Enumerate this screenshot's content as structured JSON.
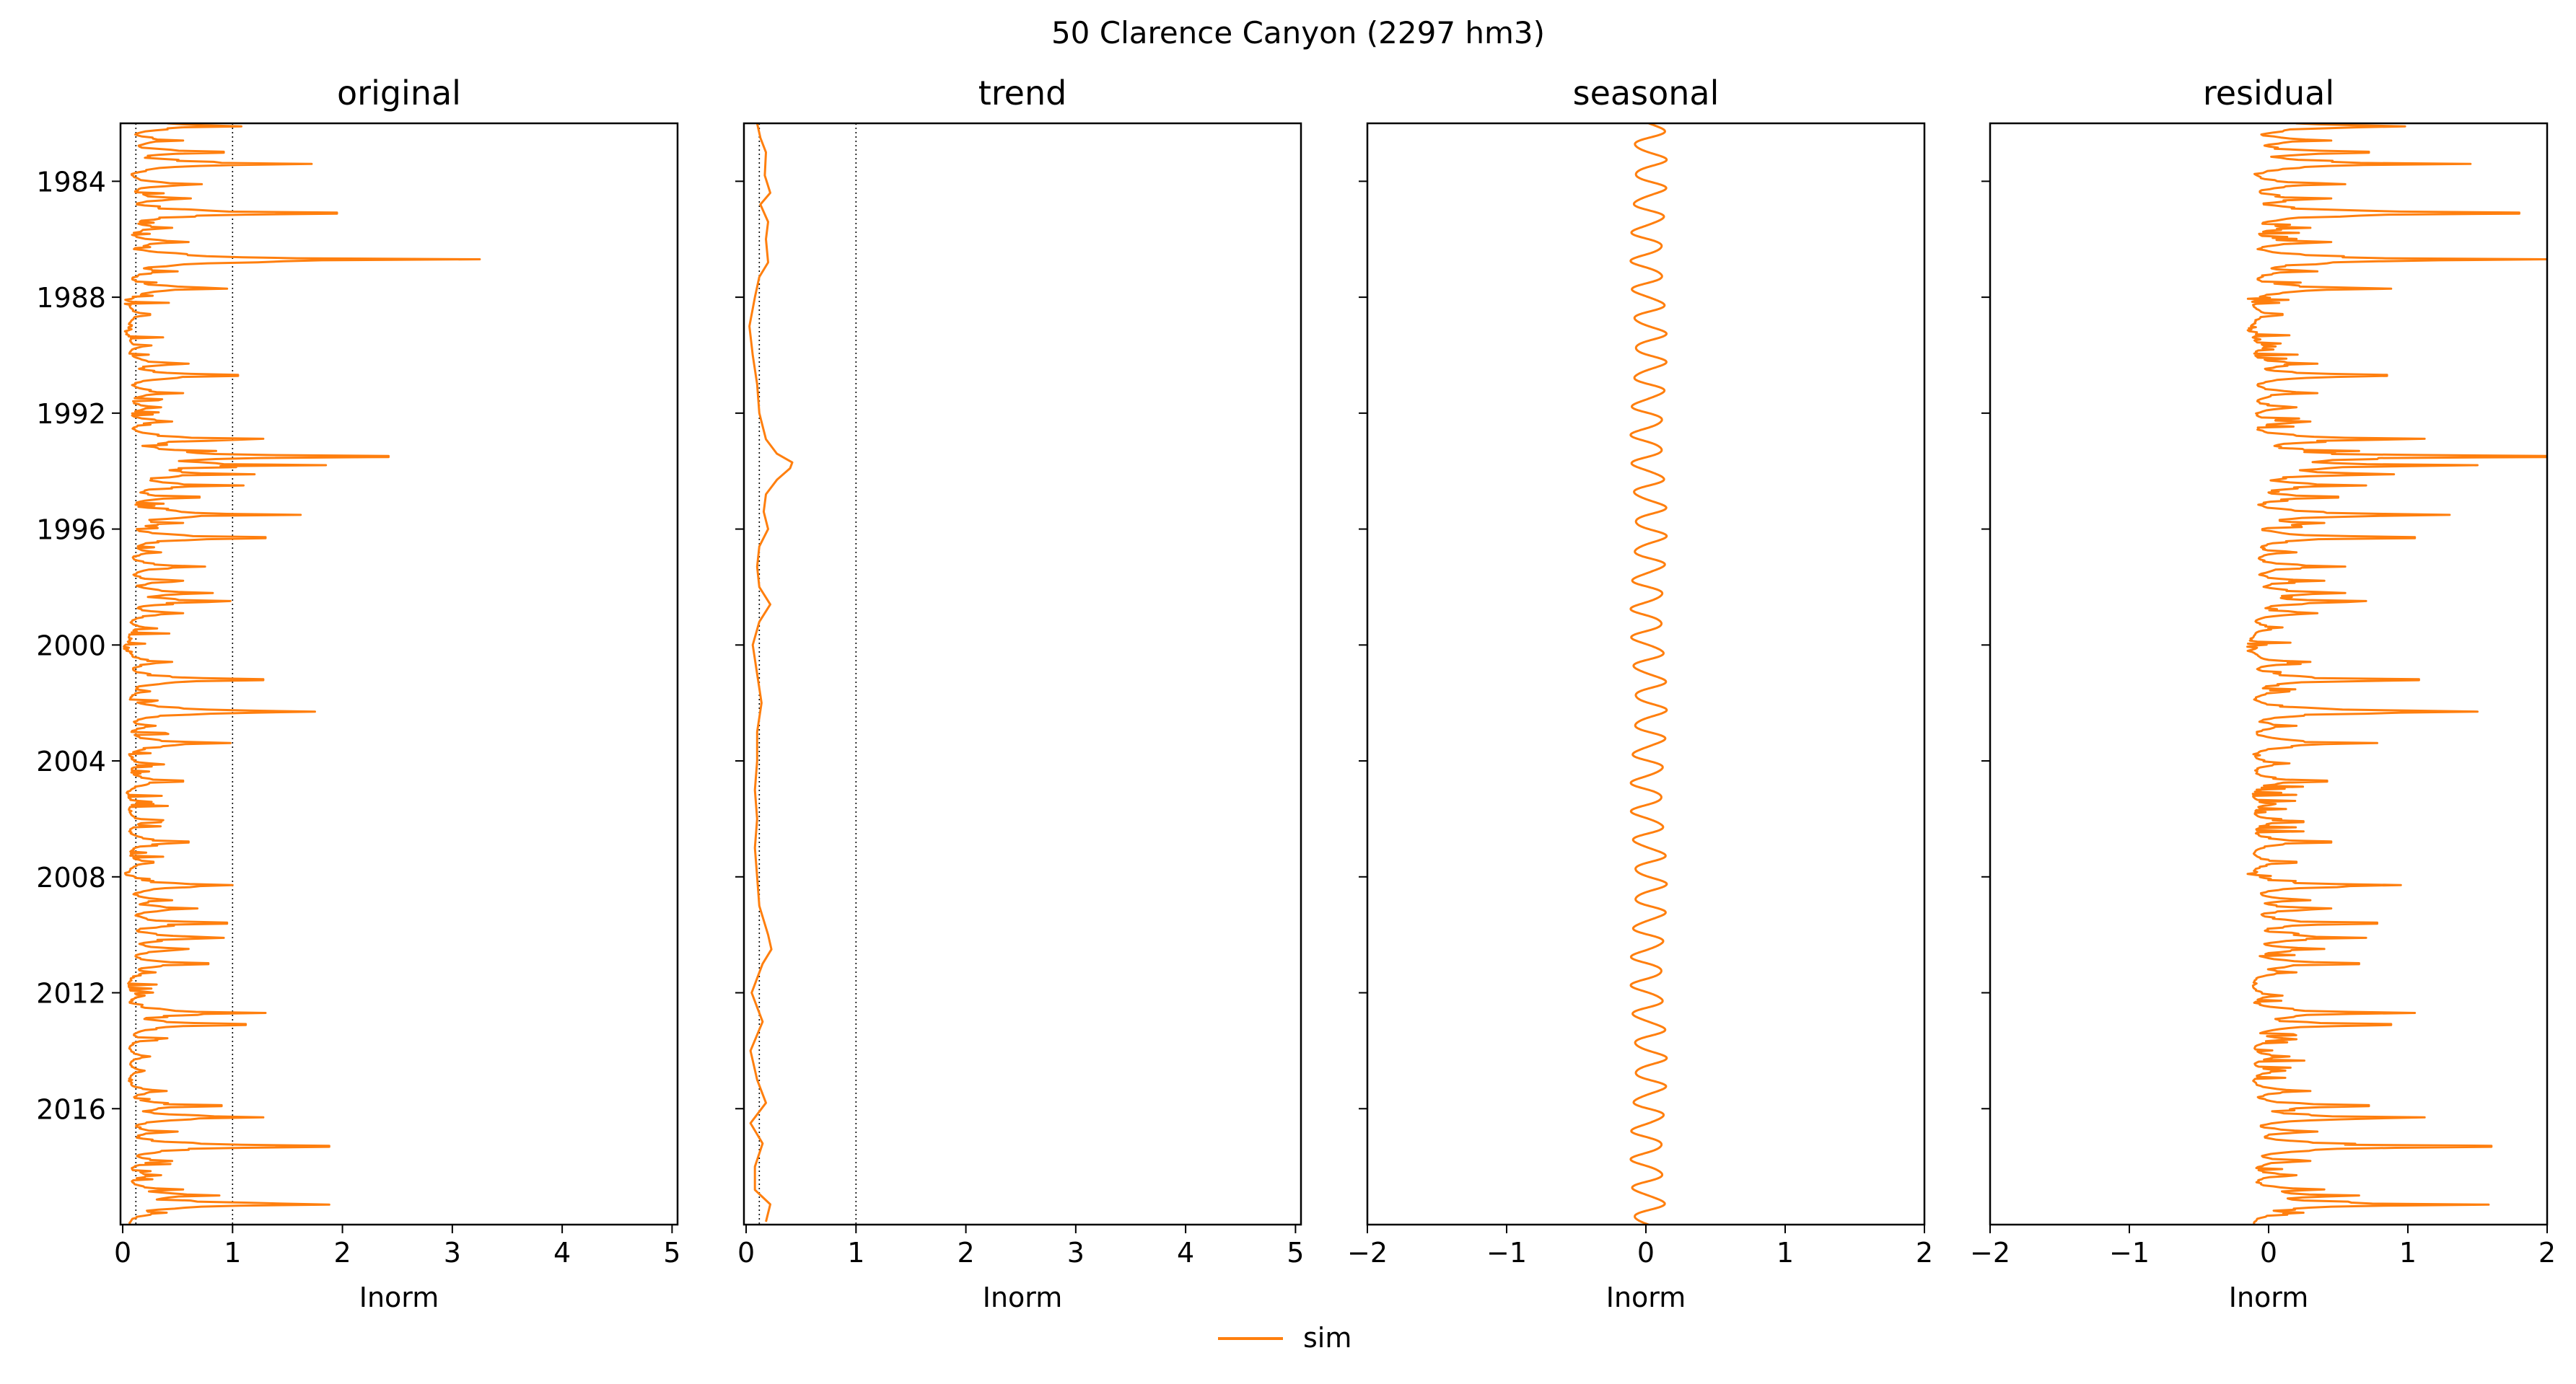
{
  "figure": {
    "suptitle": "50  Clarence Canyon (2297 hm3)",
    "legend": {
      "label": "sim",
      "placement": "bottom-center"
    }
  },
  "colors": {
    "series": "#ff7f0e",
    "axes": "#000000",
    "reference_line": "#000000"
  },
  "chart_data": [
    {
      "type": "line",
      "title": "original",
      "xlabel": "Inorm",
      "ylabel": "",
      "xlim": [
        -0.02,
        5.05
      ],
      "xticks": [
        0,
        1,
        2,
        3,
        4,
        5
      ],
      "xtick_labels": [
        "0",
        "1",
        "2",
        "3",
        "4",
        "5"
      ],
      "ylim": [
        1982.0,
        2020.0
      ],
      "yticks": [
        1984,
        1988,
        1992,
        1996,
        2000,
        2004,
        2008,
        2012,
        2016
      ],
      "ytick_labels": [
        "1984",
        "1988",
        "1992",
        "1996",
        "2000",
        "2004",
        "2008",
        "2012",
        "2016"
      ],
      "show_ytick_labels": true,
      "reference_lines_x": [
        0.12,
        1.0
      ],
      "grid": false,
      "series": [
        {
          "name": "sim",
          "kind": "spiky",
          "baseline": 0.05,
          "peaks": [
            [
              1982.1,
              1.08
            ],
            [
              1982.6,
              0.55
            ],
            [
              1983.0,
              0.92
            ],
            [
              1983.4,
              1.72
            ],
            [
              1984.1,
              0.72
            ],
            [
              1984.6,
              0.62
            ],
            [
              1985.1,
              1.95
            ],
            [
              1985.6,
              0.45
            ],
            [
              1986.1,
              0.6
            ],
            [
              1986.7,
              3.25
            ],
            [
              1987.1,
              0.5
            ],
            [
              1987.7,
              0.95
            ],
            [
              1988.6,
              0.25
            ],
            [
              1989.7,
              0.18
            ],
            [
              1990.3,
              0.6
            ],
            [
              1990.7,
              1.05
            ],
            [
              1991.3,
              0.55
            ],
            [
              1991.8,
              0.35
            ],
            [
              1992.3,
              0.45
            ],
            [
              1992.9,
              1.28
            ],
            [
              1993.3,
              0.85
            ],
            [
              1993.5,
              2.42
            ],
            [
              1993.8,
              1.85
            ],
            [
              1994.1,
              1.2
            ],
            [
              1994.5,
              1.1
            ],
            [
              1994.9,
              0.7
            ],
            [
              1995.5,
              1.62
            ],
            [
              1995.8,
              0.55
            ],
            [
              1996.3,
              1.3
            ],
            [
              1996.8,
              0.35
            ],
            [
              1997.3,
              0.75
            ],
            [
              1997.8,
              0.55
            ],
            [
              1998.2,
              0.82
            ],
            [
              1998.5,
              0.98
            ],
            [
              1998.9,
              0.55
            ],
            [
              1999.4,
              0.2
            ],
            [
              2000.6,
              0.45
            ],
            [
              2001.2,
              1.28
            ],
            [
              2001.6,
              0.25
            ],
            [
              2002.3,
              1.75
            ],
            [
              2002.8,
              0.3
            ],
            [
              2003.4,
              0.98
            ],
            [
              2004.1,
              0.25
            ],
            [
              2004.7,
              0.55
            ],
            [
              2005.5,
              0.1
            ],
            [
              2006.1,
              0.35
            ],
            [
              2006.8,
              0.6
            ],
            [
              2007.5,
              0.28
            ],
            [
              2008.3,
              1.0
            ],
            [
              2008.8,
              0.45
            ],
            [
              2009.1,
              0.68
            ],
            [
              2009.6,
              0.95
            ],
            [
              2010.1,
              0.92
            ],
            [
              2010.5,
              0.6
            ],
            [
              2011.0,
              0.78
            ],
            [
              2011.3,
              0.3
            ],
            [
              2012.1,
              0.2
            ],
            [
              2012.7,
              1.3
            ],
            [
              2013.1,
              1.12
            ],
            [
              2013.6,
              0.3
            ],
            [
              2014.2,
              0.25
            ],
            [
              2014.7,
              0.2
            ],
            [
              2015.4,
              0.4
            ],
            [
              2015.9,
              0.9
            ],
            [
              2016.3,
              1.28
            ],
            [
              2016.8,
              0.5
            ],
            [
              2017.3,
              1.88
            ],
            [
              2017.8,
              0.45
            ],
            [
              2018.3,
              0.35
            ],
            [
              2018.8,
              0.55
            ],
            [
              2019.0,
              0.88
            ],
            [
              2019.3,
              1.88
            ],
            [
              2019.6,
              0.4
            ]
          ]
        }
      ]
    },
    {
      "type": "line",
      "title": "trend",
      "xlabel": "Inorm",
      "ylabel": "",
      "xlim": [
        -0.02,
        5.05
      ],
      "xticks": [
        0,
        1,
        2,
        3,
        4,
        5
      ],
      "xtick_labels": [
        "0",
        "1",
        "2",
        "3",
        "4",
        "5"
      ],
      "ylim": [
        1982.0,
        2020.0
      ],
      "yticks": [
        1984,
        1988,
        1992,
        1996,
        2000,
        2004,
        2008,
        2012,
        2016
      ],
      "ytick_labels": [],
      "show_ytick_labels": false,
      "reference_lines_x": [
        0.12,
        1.0
      ],
      "grid": false,
      "series": [
        {
          "name": "sim",
          "kind": "smooth",
          "points": [
            [
              1982.0,
              0.1
            ],
            [
              1982.5,
              0.13
            ],
            [
              1983.0,
              0.18
            ],
            [
              1983.8,
              0.17
            ],
            [
              1984.4,
              0.22
            ],
            [
              1984.8,
              0.13
            ],
            [
              1985.4,
              0.2
            ],
            [
              1986.0,
              0.18
            ],
            [
              1986.8,
              0.2
            ],
            [
              1987.3,
              0.12
            ],
            [
              1988.0,
              0.08
            ],
            [
              1989.0,
              0.03
            ],
            [
              1990.0,
              0.06
            ],
            [
              1991.0,
              0.1
            ],
            [
              1992.0,
              0.12
            ],
            [
              1992.9,
              0.18
            ],
            [
              1993.4,
              0.28
            ],
            [
              1993.7,
              0.42
            ],
            [
              1993.9,
              0.4
            ],
            [
              1994.3,
              0.28
            ],
            [
              1994.8,
              0.18
            ],
            [
              1995.4,
              0.16
            ],
            [
              1996.0,
              0.2
            ],
            [
              1996.6,
              0.12
            ],
            [
              1997.3,
              0.1
            ],
            [
              1998.0,
              0.12
            ],
            [
              1998.6,
              0.22
            ],
            [
              1999.2,
              0.12
            ],
            [
              2000.0,
              0.06
            ],
            [
              2001.0,
              0.1
            ],
            [
              2002.0,
              0.14
            ],
            [
              2003.0,
              0.1
            ],
            [
              2004.0,
              0.1
            ],
            [
              2005.0,
              0.08
            ],
            [
              2006.0,
              0.1
            ],
            [
              2007.0,
              0.08
            ],
            [
              2008.0,
              0.1
            ],
            [
              2009.0,
              0.12
            ],
            [
              2010.0,
              0.2
            ],
            [
              2010.5,
              0.23
            ],
            [
              2011.0,
              0.15
            ],
            [
              2012.0,
              0.05
            ],
            [
              2013.0,
              0.15
            ],
            [
              2014.0,
              0.04
            ],
            [
              2015.0,
              0.1
            ],
            [
              2015.8,
              0.18
            ],
            [
              2016.5,
              0.04
            ],
            [
              2017.2,
              0.15
            ],
            [
              2018.0,
              0.08
            ],
            [
              2018.8,
              0.08
            ],
            [
              2019.3,
              0.22
            ],
            [
              2019.9,
              0.18
            ]
          ]
        }
      ]
    },
    {
      "type": "line",
      "title": "seasonal",
      "xlabel": "Inorm",
      "ylabel": "",
      "xlim": [
        -2,
        2
      ],
      "xticks": [
        -2,
        -1,
        0,
        1,
        2
      ],
      "xtick_labels": [
        "−2",
        "−1",
        "0",
        "1",
        "2"
      ],
      "ylim": [
        1982.0,
        2020.0
      ],
      "yticks": [
        1984,
        1988,
        1992,
        1996,
        2000,
        2004,
        2008,
        2012,
        2016
      ],
      "ytick_labels": [],
      "show_ytick_labels": false,
      "reference_lines_x": [],
      "grid": false,
      "series": [
        {
          "name": "sim",
          "kind": "periodic",
          "center": 0.02,
          "amplitude": 0.13,
          "period_years": 1.0
        }
      ]
    },
    {
      "type": "line",
      "title": "residual",
      "xlabel": "Inorm",
      "ylabel": "",
      "xlim": [
        -2,
        2
      ],
      "xticks": [
        -2,
        -1,
        0,
        1,
        2
      ],
      "xtick_labels": [
        "−2",
        "−1",
        "0",
        "1",
        "2"
      ],
      "ylim": [
        1982.0,
        2020.0
      ],
      "yticks": [
        1984,
        1988,
        1992,
        1996,
        2000,
        2004,
        2008,
        2012,
        2016
      ],
      "ytick_labels": [],
      "show_ytick_labels": false,
      "reference_lines_x": [],
      "grid": false,
      "series": [
        {
          "name": "sim",
          "kind": "spiky",
          "baseline": -0.12,
          "peaks": [
            [
              1982.1,
              0.98
            ],
            [
              1982.6,
              0.45
            ],
            [
              1983.0,
              0.72
            ],
            [
              1983.4,
              1.45
            ],
            [
              1984.1,
              0.55
            ],
            [
              1984.6,
              0.45
            ],
            [
              1985.1,
              1.8
            ],
            [
              1985.6,
              0.3
            ],
            [
              1986.1,
              0.45
            ],
            [
              1986.7,
              2.0
            ],
            [
              1987.1,
              0.35
            ],
            [
              1987.7,
              0.88
            ],
            [
              1988.6,
              0.1
            ],
            [
              1989.7,
              0.05
            ],
            [
              1990.3,
              0.35
            ],
            [
              1990.7,
              0.85
            ],
            [
              1991.3,
              0.35
            ],
            [
              1991.8,
              0.2
            ],
            [
              1992.3,
              0.3
            ],
            [
              1992.9,
              1.12
            ],
            [
              1993.3,
              0.65
            ],
            [
              1993.5,
              2.0
            ],
            [
              1993.8,
              1.5
            ],
            [
              1994.1,
              0.9
            ],
            [
              1994.5,
              0.7
            ],
            [
              1994.9,
              0.5
            ],
            [
              1995.5,
              1.3
            ],
            [
              1995.8,
              0.4
            ],
            [
              1996.3,
              1.05
            ],
            [
              1996.8,
              0.2
            ],
            [
              1997.3,
              0.55
            ],
            [
              1997.8,
              0.4
            ],
            [
              1998.2,
              0.55
            ],
            [
              1998.5,
              0.7
            ],
            [
              1998.9,
              0.35
            ],
            [
              1999.4,
              0.1
            ],
            [
              2000.6,
              0.3
            ],
            [
              2001.2,
              1.08
            ],
            [
              2001.6,
              0.15
            ],
            [
              2002.3,
              1.5
            ],
            [
              2002.8,
              0.2
            ],
            [
              2003.4,
              0.78
            ],
            [
              2004.1,
              0.15
            ],
            [
              2004.7,
              0.42
            ],
            [
              2005.5,
              0.05
            ],
            [
              2006.1,
              0.25
            ],
            [
              2006.8,
              0.45
            ],
            [
              2007.5,
              0.2
            ],
            [
              2008.3,
              0.95
            ],
            [
              2008.8,
              0.3
            ],
            [
              2009.1,
              0.45
            ],
            [
              2009.6,
              0.78
            ],
            [
              2010.1,
              0.7
            ],
            [
              2010.5,
              0.4
            ],
            [
              2011.0,
              0.65
            ],
            [
              2011.3,
              0.2
            ],
            [
              2012.1,
              0.1
            ],
            [
              2012.7,
              1.05
            ],
            [
              2013.1,
              0.88
            ],
            [
              2013.6,
              0.2
            ],
            [
              2014.2,
              0.15
            ],
            [
              2014.7,
              0.12
            ],
            [
              2015.4,
              0.3
            ],
            [
              2015.9,
              0.72
            ],
            [
              2016.3,
              1.12
            ],
            [
              2016.8,
              0.35
            ],
            [
              2017.3,
              1.6
            ],
            [
              2017.8,
              0.3
            ],
            [
              2018.3,
              0.2
            ],
            [
              2018.8,
              0.4
            ],
            [
              2019.0,
              0.65
            ],
            [
              2019.3,
              1.58
            ],
            [
              2019.6,
              0.25
            ]
          ]
        }
      ]
    }
  ]
}
